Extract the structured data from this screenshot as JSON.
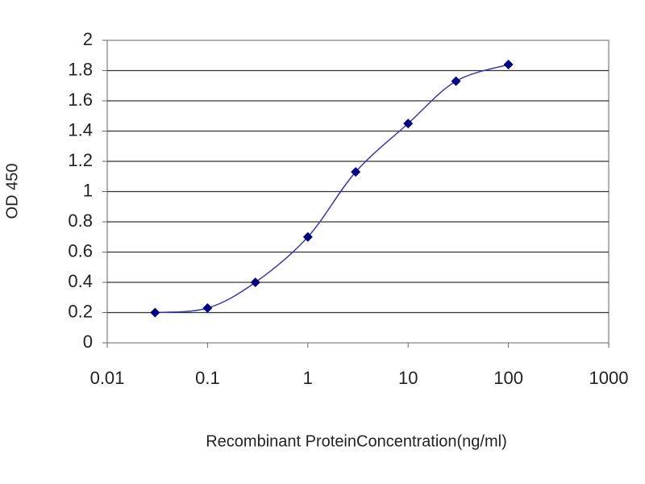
{
  "chart_data": {
    "type": "line",
    "x_label": "Recombinant ProteinConcentration(ng/ml)",
    "y_label": "OD 450",
    "x": [
      0.03,
      0.1,
      0.3,
      1,
      3,
      10,
      30,
      100
    ],
    "series": [
      {
        "color": "#000080",
        "values": [
          0.2,
          0.23,
          0.4,
          0.7,
          1.13,
          1.45,
          1.73,
          1.84
        ]
      }
    ],
    "xscale": "log",
    "xlim": [
      0.01,
      1000
    ],
    "xticks": [
      0.01,
      0.1,
      1,
      10,
      100,
      1000
    ],
    "ylim": [
      0,
      2
    ],
    "yticks": [
      0,
      0.2,
      0.4,
      0.6,
      0.8,
      1,
      1.2,
      1.4,
      1.6,
      1.8,
      2
    ],
    "grid": true
  }
}
